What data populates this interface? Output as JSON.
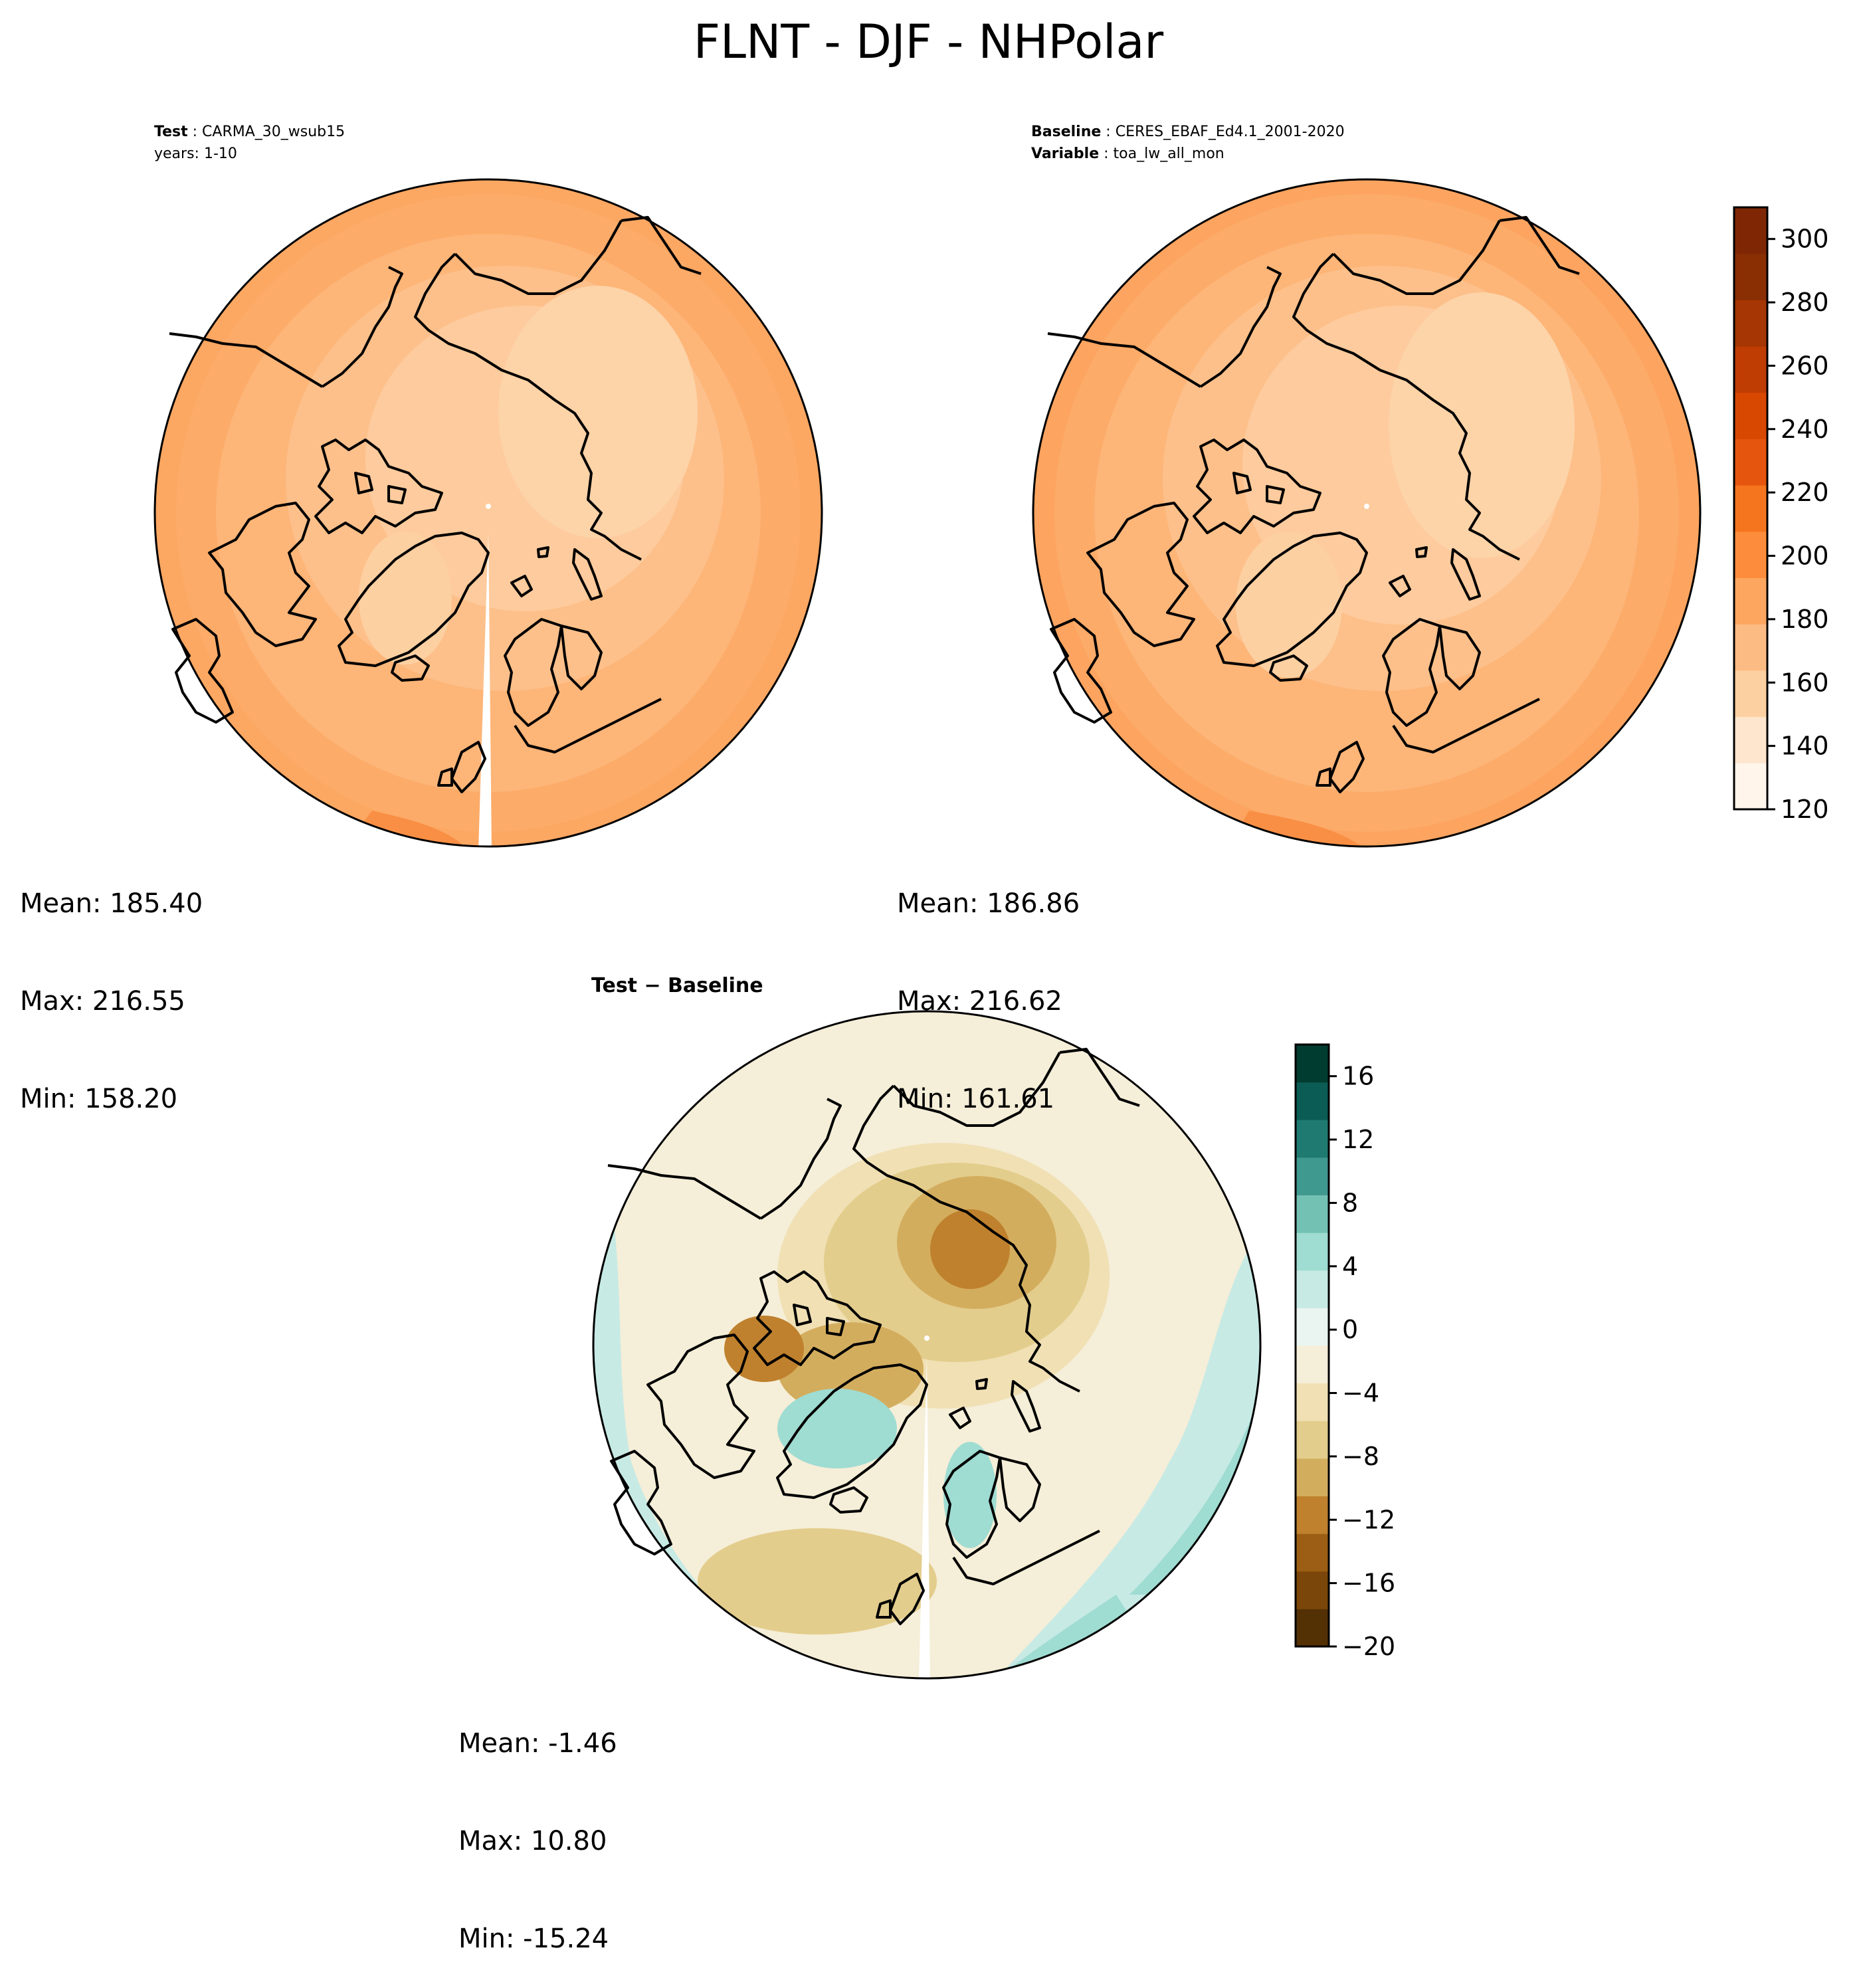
{
  "title": "FLNT - DJF - NHPolar",
  "colors": {
    "seq": [
      "#fff5eb",
      "#fee6ce",
      "#fdd0a2",
      "#fdbb84",
      "#fda65f",
      "#fd8d3c",
      "#f5751f",
      "#e6550d",
      "#d94801",
      "#bf3d02",
      "#a63603",
      "#8a2e04",
      "#7f2704"
    ],
    "div": [
      "#543005",
      "#7a4609",
      "#9b5e14",
      "#bf812d",
      "#d3ad5e",
      "#e3cd8c",
      "#f0e0b4",
      "#f5eed8",
      "#eaf5f1",
      "#c7eae5",
      "#9fdcd2",
      "#72c1b3",
      "#40998f",
      "#1f7a72",
      "#0b5c54",
      "#003c30"
    ],
    "coastline": "#000000",
    "background": "#ffffff"
  },
  "panels": {
    "test": {
      "meta_line1_label": "Test",
      "meta_line1_value": "CARMA_30_wsub15",
      "meta_line2": "years: 1-10",
      "mean": "Mean: 185.40",
      "max": "Max: 216.55",
      "min": "Min: 158.20"
    },
    "baseline": {
      "meta_line1_label": "Baseline",
      "meta_line1_value": "CERES_EBAF_Ed4.1_2001-2020",
      "meta_line2_label": "Variable",
      "meta_line2_value": "toa_lw_all_mon",
      "mean": "Mean: 186.86",
      "max": "Max: 216.62",
      "min": "Min: 161.61"
    },
    "diff": {
      "title": "Test − Baseline",
      "mean": "Mean: -1.46",
      "max": "Max: 10.80",
      "min": "Min: -15.24"
    }
  },
  "colorbars": {
    "main": {
      "range": [
        120,
        310
      ],
      "ticks": [
        120,
        140,
        160,
        180,
        200,
        220,
        240,
        260,
        280,
        300
      ],
      "tick_labels": [
        "120",
        "140",
        "160",
        "180",
        "200",
        "220",
        "240",
        "260",
        "280",
        "300"
      ]
    },
    "diff": {
      "range": [
        -20,
        18
      ],
      "ticks": [
        -20,
        -16,
        -12,
        -8,
        -4,
        0,
        4,
        8,
        12,
        16
      ],
      "tick_labels": [
        "−20",
        "−16",
        "−12",
        "−8",
        "−4",
        "0",
        "4",
        "8",
        "12",
        "16"
      ]
    }
  }
}
